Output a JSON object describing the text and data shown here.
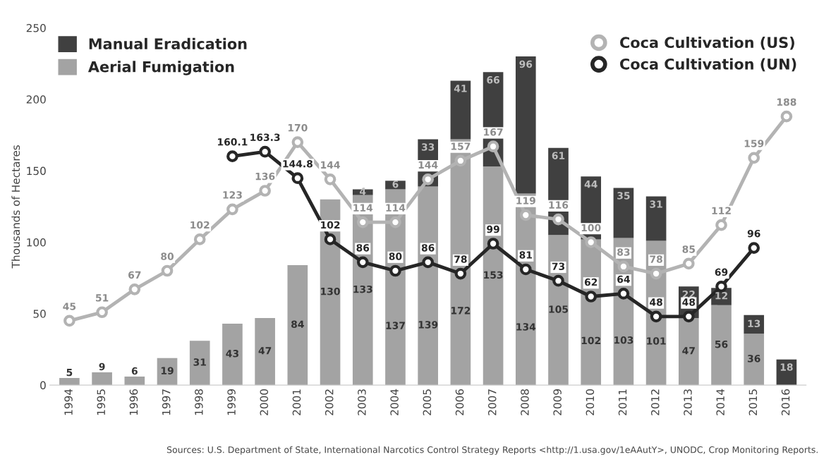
{
  "chart_data": {
    "type": "bar",
    "stacked": true,
    "ylabel": "Thousands of Hectares",
    "categories": [
      "1994",
      "1995",
      "1996",
      "1997",
      "1998",
      "1999",
      "2000",
      "2001",
      "2002",
      "2003",
      "2004",
      "2005",
      "2006",
      "2007",
      "2008",
      "2009",
      "2010",
      "2011",
      "2012",
      "2013",
      "2014",
      "2015",
      "2016"
    ],
    "series": [
      {
        "name": "Aerial Fumigation",
        "color": "#a3a3a3",
        "values": [
          5,
          9,
          6,
          19,
          31,
          43,
          47,
          84,
          130,
          133,
          137,
          139,
          172,
          153,
          134,
          105,
          102,
          103,
          101,
          47,
          56,
          36,
          null
        ]
      },
      {
        "name": "Manual Eradication",
        "color": "#404040",
        "values": [
          null,
          null,
          null,
          null,
          null,
          null,
          null,
          null,
          null,
          4,
          6,
          33,
          41,
          66,
          96,
          61,
          44,
          35,
          31,
          22,
          12,
          13,
          18
        ]
      },
      {
        "name": "Coca Cultivation (US)",
        "type": "line",
        "color": "#b3b3b3",
        "marker": "circle",
        "values": [
          45,
          51,
          67,
          80,
          102,
          123,
          136,
          170,
          144,
          114,
          114,
          144,
          157,
          167,
          119,
          116,
          100,
          83,
          78,
          85,
          112,
          159,
          188
        ]
      },
      {
        "name": "Coca Cultivation (UN)",
        "type": "line",
        "color": "#262626",
        "marker": "circle",
        "values": [
          null,
          null,
          null,
          null,
          null,
          160.1,
          163.3,
          144.8,
          102,
          86,
          80,
          86,
          78,
          99,
          81,
          73,
          62,
          64,
          48,
          48,
          69,
          96,
          null
        ]
      }
    ],
    "ylim": [
      0,
      250
    ],
    "yticks": [
      0,
      50,
      100,
      150,
      200,
      250
    ],
    "grid": false,
    "legend": "top",
    "data_labels": true,
    "annotations": [
      "Sources: U.S. Department of State, International Narcotics Control Strategy Reports <http://1.usa.gov/1eAAutY>, UNODC, Crop Monitoring Reports."
    ]
  }
}
